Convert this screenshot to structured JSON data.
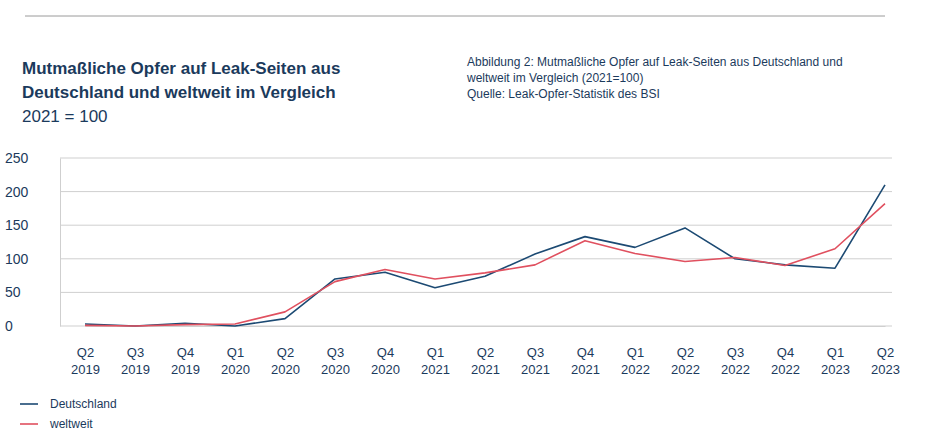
{
  "chart_data": {
    "type": "line",
    "title": "Mutmaßliche Opfer auf Leak-Seiten aus Deutschland und weltweit im Vergleich",
    "subtitle": "2021 = 100",
    "annotations": [
      "Abbildung 2: Mutmaßliche Opfer auf Leak-Seiten aus Deutschland und weltweit im Vergleich (2021=100)",
      "Quelle: Leak-Opfer-Statistik des BSI"
    ],
    "categories": [
      "Q2 2019",
      "Q3 2019",
      "Q4 2019",
      "Q1 2020",
      "Q2 2020",
      "Q3 2020",
      "Q4 2020",
      "Q1 2021",
      "Q2 2021",
      "Q3 2021",
      "Q4 2021",
      "Q1 2022",
      "Q2 2022",
      "Q3 2022",
      "Q4 2022",
      "Q1 2023",
      "Q2 2023"
    ],
    "series": [
      {
        "name": "Deutschland",
        "color": "#1c4a73",
        "values": [
          3,
          0,
          4,
          0,
          11,
          70,
          80,
          57,
          74,
          107,
          133,
          117,
          146,
          100,
          91,
          86,
          210
        ]
      },
      {
        "name": "weltweit",
        "color": "#e0505f",
        "values": [
          1,
          0,
          2,
          3,
          21,
          66,
          84,
          70,
          79,
          91,
          127,
          108,
          96,
          102,
          90,
          115,
          182
        ]
      }
    ],
    "ylim": [
      0,
      250
    ],
    "yticks": [
      0,
      50,
      100,
      150,
      200,
      250
    ],
    "grid": true,
    "legend": "bottom-left"
  }
}
